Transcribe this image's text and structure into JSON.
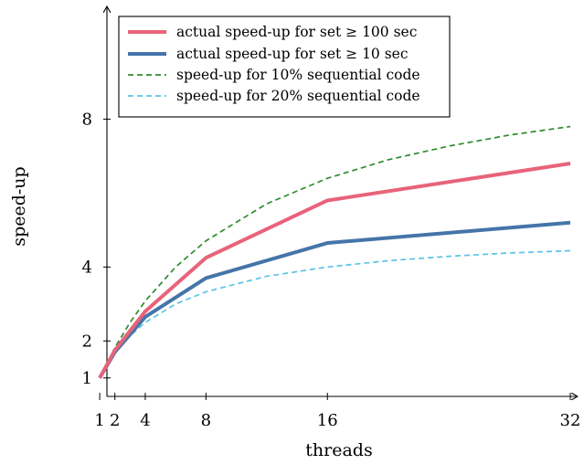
{
  "chart_data": {
    "type": "line",
    "title": "",
    "xlabel": "threads",
    "ylabel": "speed-up",
    "xlim": [
      0,
      32
    ],
    "ylim": [
      0.5,
      11.0
    ],
    "x_ticks": [
      1,
      2,
      4,
      8,
      16,
      32
    ],
    "y_ticks": [
      1,
      2,
      4,
      8
    ],
    "grid": false,
    "legend_position": "top-left",
    "series": [
      {
        "name": "actual speed-up for set ≥ 100 sec",
        "color": "#E8637A",
        "style": "solid",
        "x": [
          1,
          2,
          4,
          8,
          16,
          32
        ],
        "y": [
          1.0,
          1.75,
          2.8,
          4.25,
          5.8,
          6.8
        ]
      },
      {
        "name": "actual speed-up for set ≥ 10 sec",
        "color": "#4575A8",
        "style": "solid",
        "x": [
          1,
          2,
          4,
          8,
          16,
          32
        ],
        "y": [
          1.0,
          1.7,
          2.65,
          3.7,
          4.65,
          5.2
        ]
      },
      {
        "name": "speed-up for 10% sequential code",
        "color": "#2E8B2E",
        "style": "dashed",
        "x": [
          1,
          2,
          3,
          4,
          6,
          8,
          12,
          16,
          20,
          24,
          28,
          32
        ],
        "y": [
          1.0,
          1.82,
          2.5,
          3.08,
          4.0,
          4.71,
          5.71,
          6.4,
          6.9,
          7.27,
          7.57,
          7.8
        ]
      },
      {
        "name": "speed-up for 20% sequential code",
        "color": "#5BC3E6",
        "style": "dashed",
        "x": [
          1,
          2,
          3,
          4,
          6,
          8,
          12,
          16,
          20,
          24,
          28,
          32
        ],
        "y": [
          1.0,
          1.67,
          2.14,
          2.5,
          3.0,
          3.33,
          3.75,
          4.0,
          4.17,
          4.29,
          4.38,
          4.44
        ]
      }
    ]
  }
}
